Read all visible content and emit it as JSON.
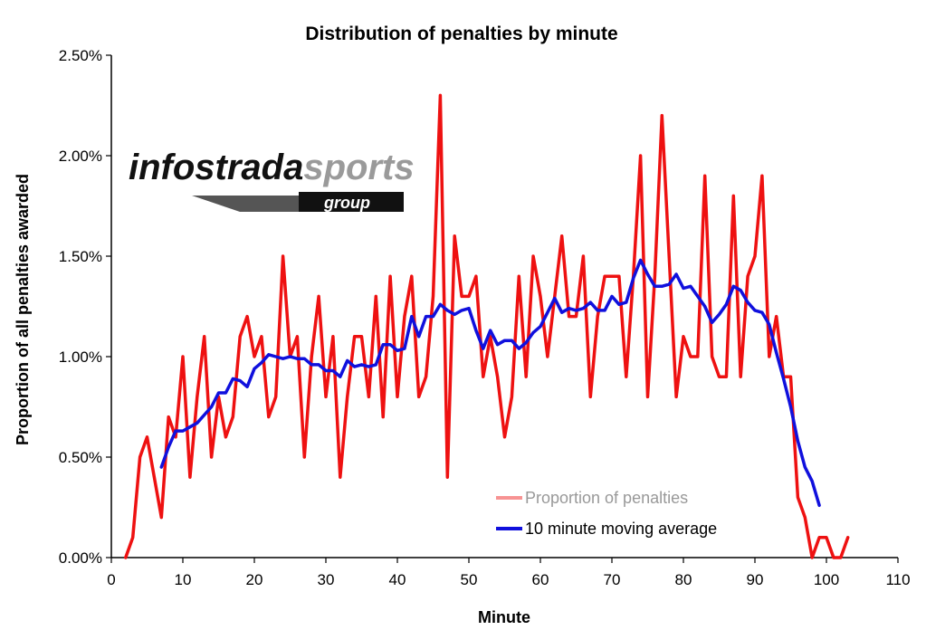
{
  "chart_data": {
    "type": "line",
    "title": "Distribution of penalties by minute",
    "xlabel": "Minute",
    "ylabel": "Proportion of all penalties awarded",
    "xlim": [
      0,
      110
    ],
    "ylim": [
      0,
      0.025
    ],
    "x_ticks": [
      0,
      10,
      20,
      30,
      40,
      50,
      60,
      70,
      80,
      90,
      100,
      110
    ],
    "y_ticks": [
      0,
      0.005,
      0.01,
      0.015,
      0.02,
      0.025
    ],
    "y_tick_labels": [
      "0.00%",
      "0.50%",
      "1.00%",
      "1.50%",
      "2.00%",
      "2.50%"
    ],
    "grid": false,
    "legend_position": "bottom-right",
    "series": [
      {
        "name": "Proportion of penalties",
        "color": "#ee1111",
        "x": [
          2,
          3,
          4,
          5,
          6,
          7,
          8,
          9,
          10,
          11,
          12,
          13,
          14,
          15,
          16,
          17,
          18,
          19,
          20,
          21,
          22,
          23,
          24,
          25,
          26,
          27,
          28,
          29,
          30,
          31,
          32,
          33,
          34,
          35,
          36,
          37,
          38,
          39,
          40,
          41,
          42,
          43,
          44,
          45,
          46,
          47,
          48,
          49,
          50,
          51,
          52,
          53,
          54,
          55,
          56,
          57,
          58,
          59,
          60,
          61,
          62,
          63,
          64,
          65,
          66,
          67,
          68,
          69,
          70,
          71,
          72,
          73,
          74,
          75,
          76,
          77,
          78,
          79,
          80,
          81,
          82,
          83,
          84,
          85,
          86,
          87,
          88,
          89,
          90,
          91,
          92,
          93,
          94,
          95,
          96,
          97,
          98,
          99,
          100,
          101,
          102,
          103
        ],
        "values": [
          0,
          0.001,
          0.005,
          0.006,
          0.004,
          0.002,
          0.007,
          0.006,
          0.01,
          0.004,
          0.008,
          0.011,
          0.005,
          0.008,
          0.006,
          0.007,
          0.011,
          0.012,
          0.01,
          0.011,
          0.007,
          0.008,
          0.015,
          0.01,
          0.011,
          0.005,
          0.01,
          0.013,
          0.008,
          0.011,
          0.004,
          0.008,
          0.011,
          0.011,
          0.008,
          0.013,
          0.007,
          0.014,
          0.008,
          0.012,
          0.014,
          0.008,
          0.009,
          0.013,
          0.023,
          0.004,
          0.016,
          0.013,
          0.013,
          0.014,
          0.009,
          0.011,
          0.009,
          0.006,
          0.008,
          0.014,
          0.009,
          0.015,
          0.013,
          0.01,
          0.013,
          0.016,
          0.012,
          0.012,
          0.015,
          0.008,
          0.012,
          0.014,
          0.014,
          0.014,
          0.009,
          0.014,
          0.02,
          0.008,
          0.014,
          0.022,
          0.015,
          0.008,
          0.011,
          0.01,
          0.01,
          0.019,
          0.01,
          0.009,
          0.009,
          0.018,
          0.009,
          0.014,
          0.015,
          0.019,
          0.01,
          0.012,
          0.009,
          0.009,
          0.003,
          0.002,
          0,
          0.001,
          0.001,
          0,
          0,
          0.001
        ]
      },
      {
        "name": "10 minute moving average",
        "color": "#1010dd",
        "x": [
          7,
          8,
          9,
          10,
          11,
          12,
          13,
          14,
          15,
          16,
          17,
          18,
          19,
          20,
          21,
          22,
          23,
          24,
          25,
          26,
          27,
          28,
          29,
          30,
          31,
          32,
          33,
          34,
          35,
          36,
          37,
          38,
          39,
          40,
          41,
          42,
          43,
          44,
          45,
          46,
          47,
          48,
          49,
          50,
          51,
          52,
          53,
          54,
          55,
          56,
          57,
          58,
          59,
          60,
          61,
          62,
          63,
          64,
          65,
          66,
          67,
          68,
          69,
          70,
          71,
          72,
          73,
          74,
          75,
          76,
          77,
          78,
          79,
          80,
          81,
          82,
          83,
          84,
          85,
          86,
          87,
          88,
          89,
          90,
          91,
          92,
          93,
          94,
          95,
          96,
          97,
          98,
          99
        ],
        "values": [
          0.0045,
          0.0055,
          0.0063,
          0.0063,
          0.0065,
          0.0067,
          0.0071,
          0.0075,
          0.0082,
          0.0082,
          0.0089,
          0.0088,
          0.0085,
          0.0094,
          0.0097,
          0.0101,
          0.01,
          0.0099,
          0.01,
          0.0099,
          0.0099,
          0.0096,
          0.0096,
          0.0093,
          0.0093,
          0.009,
          0.0098,
          0.0095,
          0.0096,
          0.0095,
          0.0096,
          0.0106,
          0.0106,
          0.0103,
          0.0104,
          0.012,
          0.011,
          0.012,
          0.012,
          0.0126,
          0.0123,
          0.0121,
          0.0123,
          0.0124,
          0.0113,
          0.0104,
          0.0113,
          0.0106,
          0.0108,
          0.0108,
          0.0104,
          0.0107,
          0.0112,
          0.0115,
          0.0122,
          0.0129,
          0.0122,
          0.0124,
          0.0123,
          0.0124,
          0.0127,
          0.0123,
          0.0123,
          0.013,
          0.0126,
          0.0127,
          0.0139,
          0.0148,
          0.0141,
          0.0135,
          0.0135,
          0.0136,
          0.0141,
          0.0134,
          0.0135,
          0.013,
          0.0125,
          0.0117,
          0.0121,
          0.0126,
          0.0135,
          0.0133,
          0.0127,
          0.0123,
          0.0122,
          0.0116,
          0.0102,
          0.0089,
          0.0075,
          0.0058,
          0.0045,
          0.0038,
          0.0026
        ]
      }
    ]
  },
  "logo": {
    "part1": "infostrada",
    "part2": "sports",
    "sub": "group"
  }
}
